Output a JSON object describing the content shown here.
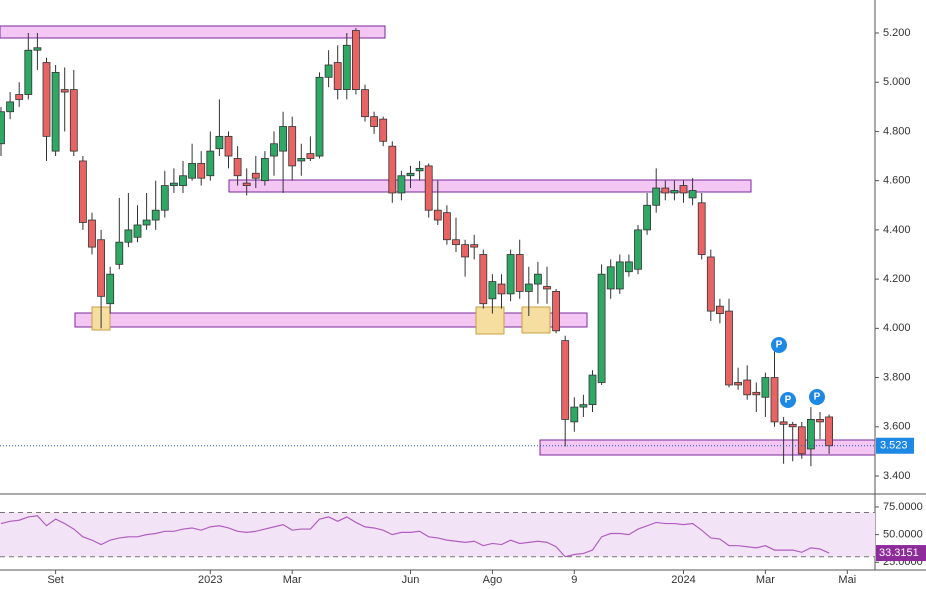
{
  "chart_data": {
    "type": "candlestick",
    "candles": [
      [
        4.75,
        4.9,
        4.7,
        4.88
      ],
      [
        4.88,
        4.96,
        4.85,
        4.92
      ],
      [
        4.95,
        5.0,
        4.9,
        4.93
      ],
      [
        4.95,
        5.2,
        4.93,
        5.13
      ],
      [
        5.13,
        5.2,
        5.05,
        5.14
      ],
      [
        5.08,
        5.1,
        4.68,
        4.78
      ],
      [
        4.72,
        5.07,
        4.7,
        5.04
      ],
      [
        4.97,
        5.06,
        4.8,
        4.96
      ],
      [
        4.97,
        5.05,
        4.7,
        4.72
      ],
      [
        4.68,
        4.7,
        4.4,
        4.43
      ],
      [
        4.44,
        4.47,
        4.3,
        4.33
      ],
      [
        4.36,
        4.4,
        4.0,
        4.13
      ],
      [
        4.1,
        4.25,
        4.06,
        4.22
      ],
      [
        4.26,
        4.53,
        4.24,
        4.35
      ],
      [
        4.35,
        4.55,
        4.33,
        4.4
      ],
      [
        4.37,
        4.5,
        4.35,
        4.42
      ],
      [
        4.42,
        4.55,
        4.4,
        4.44
      ],
      [
        4.44,
        4.6,
        4.4,
        4.48
      ],
      [
        4.48,
        4.64,
        4.45,
        4.58
      ],
      [
        4.58,
        4.65,
        4.55,
        4.59
      ],
      [
        4.58,
        4.68,
        4.55,
        4.62
      ],
      [
        4.61,
        4.75,
        4.6,
        4.67
      ],
      [
        4.67,
        4.72,
        4.58,
        4.61
      ],
      [
        4.62,
        4.8,
        4.6,
        4.72
      ],
      [
        4.73,
        4.93,
        4.7,
        4.78
      ],
      [
        4.78,
        4.8,
        4.65,
        4.7
      ],
      [
        4.69,
        4.74,
        4.58,
        4.62
      ],
      [
        4.59,
        4.65,
        4.54,
        4.58
      ],
      [
        4.63,
        4.7,
        4.57,
        4.61
      ],
      [
        4.6,
        4.72,
        4.58,
        4.69
      ],
      [
        4.7,
        4.8,
        4.62,
        4.75
      ],
      [
        4.72,
        4.88,
        4.55,
        4.82
      ],
      [
        4.82,
        4.86,
        4.6,
        4.66
      ],
      [
        4.68,
        4.75,
        4.62,
        4.69
      ],
      [
        4.71,
        4.78,
        4.68,
        4.69
      ],
      [
        4.7,
        5.04,
        4.69,
        5.02
      ],
      [
        5.02,
        5.13,
        4.98,
        5.07
      ],
      [
        5.08,
        5.15,
        4.93,
        4.97
      ],
      [
        4.97,
        5.2,
        4.93,
        5.15
      ],
      [
        5.21,
        5.22,
        4.95,
        4.97
      ],
      [
        4.97,
        4.99,
        4.84,
        4.86
      ],
      [
        4.86,
        4.88,
        4.79,
        4.82
      ],
      [
        4.85,
        4.86,
        4.74,
        4.76
      ],
      [
        4.74,
        4.76,
        4.51,
        4.55
      ],
      [
        4.55,
        4.64,
        4.52,
        4.62
      ],
      [
        4.62,
        4.66,
        4.57,
        4.63
      ],
      [
        4.64,
        4.68,
        4.6,
        4.65
      ],
      [
        4.66,
        4.67,
        4.45,
        4.48
      ],
      [
        4.48,
        4.6,
        4.42,
        4.44
      ],
      [
        4.47,
        4.5,
        4.34,
        4.36
      ],
      [
        4.36,
        4.45,
        4.31,
        4.34
      ],
      [
        4.34,
        4.36,
        4.21,
        4.29
      ],
      [
        4.34,
        4.38,
        4.28,
        4.33
      ],
      [
        4.3,
        4.32,
        4.08,
        4.1
      ],
      [
        4.12,
        4.22,
        4.06,
        4.19
      ],
      [
        4.18,
        4.22,
        4.08,
        4.14
      ],
      [
        4.14,
        4.32,
        4.11,
        4.3
      ],
      [
        4.3,
        4.36,
        4.12,
        4.15
      ],
      [
        4.15,
        4.25,
        4.05,
        4.18
      ],
      [
        4.18,
        4.27,
        4.1,
        4.22
      ],
      [
        4.17,
        4.25,
        4.1,
        4.16
      ],
      [
        4.15,
        4.16,
        3.98,
        3.99
      ],
      [
        3.95,
        3.97,
        3.52,
        3.63
      ],
      [
        3.62,
        3.72,
        3.58,
        3.68
      ],
      [
        3.68,
        3.73,
        3.64,
        3.69
      ],
      [
        3.69,
        3.83,
        3.66,
        3.81
      ],
      [
        3.78,
        4.26,
        3.77,
        4.22
      ],
      [
        4.16,
        4.28,
        4.12,
        4.25
      ],
      [
        4.16,
        4.3,
        4.14,
        4.27
      ],
      [
        4.23,
        4.3,
        4.21,
        4.27
      ],
      [
        4.24,
        4.42,
        4.22,
        4.4
      ],
      [
        4.4,
        4.55,
        4.38,
        4.5
      ],
      [
        4.5,
        4.65,
        4.47,
        4.57
      ],
      [
        4.57,
        4.6,
        4.52,
        4.55
      ],
      [
        4.55,
        4.6,
        4.52,
        4.56
      ],
      [
        4.58,
        4.6,
        4.51,
        4.55
      ],
      [
        4.53,
        4.61,
        4.5,
        4.56
      ],
      [
        4.51,
        4.55,
        4.28,
        4.3
      ],
      [
        4.29,
        4.32,
        4.03,
        4.07
      ],
      [
        4.09,
        4.12,
        4.02,
        4.06
      ],
      [
        4.07,
        4.12,
        3.76,
        3.77
      ],
      [
        3.78,
        3.84,
        3.75,
        3.77
      ],
      [
        3.79,
        3.85,
        3.71,
        3.73
      ],
      [
        3.74,
        3.78,
        3.66,
        3.73
      ],
      [
        3.72,
        3.82,
        3.64,
        3.8
      ],
      [
        3.8,
        3.94,
        3.6,
        3.62
      ],
      [
        3.62,
        3.64,
        3.45,
        3.61
      ],
      [
        3.61,
        3.62,
        3.46,
        3.6
      ],
      [
        3.6,
        3.62,
        3.47,
        3.49
      ],
      [
        3.51,
        3.68,
        3.44,
        3.63
      ],
      [
        3.63,
        3.66,
        3.55,
        3.62
      ],
      [
        3.64,
        3.65,
        3.49,
        3.523
      ]
    ],
    "up_color": "#2fa866",
    "down_color": "#e86464",
    "ylim": [
      3.331,
      5.334
    ],
    "yticks": [
      {
        "value": 3.4,
        "label": "3.400"
      },
      {
        "value": 3.6,
        "label": "3.600"
      },
      {
        "value": 3.8,
        "label": "3.800"
      },
      {
        "value": 4.0,
        "label": "4.000"
      },
      {
        "value": 4.2,
        "label": "4.200"
      },
      {
        "value": 4.4,
        "label": "4.400"
      },
      {
        "value": 4.6,
        "label": "4.600"
      },
      {
        "value": 4.8,
        "label": "4.800"
      },
      {
        "value": 5.0,
        "label": "5.000"
      },
      {
        "value": 5.2,
        "label": "5.200"
      }
    ],
    "last_price": {
      "value": 3.523,
      "label": "3.523"
    },
    "xticks": [
      {
        "value": 6,
        "label": "Set"
      },
      {
        "value": 23,
        "label": "2023"
      },
      {
        "value": 32,
        "label": "Mar"
      },
      {
        "value": 45,
        "label": "Jun"
      },
      {
        "value": 54,
        "label": "Ago"
      },
      {
        "value": 63,
        "label": "9"
      },
      {
        "value": 75,
        "label": "2024"
      },
      {
        "value": 84,
        "label": "Mar"
      },
      {
        "value": 93,
        "label": "Mai"
      }
    ],
    "markers": [
      "P",
      "P",
      "P"
    ],
    "rsi": {
      "values": [
        60,
        62,
        63,
        66,
        67,
        58,
        64,
        60,
        55,
        48,
        45,
        41,
        45,
        47,
        48,
        48,
        50,
        51,
        53,
        53,
        55,
        56,
        54,
        57,
        58,
        56,
        53,
        52,
        53,
        55,
        57,
        59,
        54,
        55,
        55,
        64,
        66,
        62,
        66,
        61,
        57,
        56,
        54,
        50,
        52,
        52,
        53,
        48,
        47,
        45,
        44,
        43,
        44,
        40,
        42,
        41,
        45,
        42,
        43,
        44,
        43,
        39,
        30,
        32,
        33,
        36,
        48,
        51,
        51,
        50,
        55,
        58,
        61,
        60,
        60,
        59,
        60,
        54,
        47,
        46,
        40,
        40,
        39,
        38,
        40,
        36,
        36,
        36,
        34,
        38,
        37,
        33.3151
      ],
      "color": "#b05fc0",
      "ylim": [
        18,
        84
      ],
      "bands": [
        30,
        70
      ],
      "yticks": [
        {
          "value": 75,
          "label": "75.0000"
        },
        {
          "value": 50,
          "label": "50.0000"
        },
        {
          "value": 25,
          "label": "25.0000"
        }
      ],
      "last": {
        "value": 33.3151,
        "label": "33.3151"
      }
    }
  }
}
